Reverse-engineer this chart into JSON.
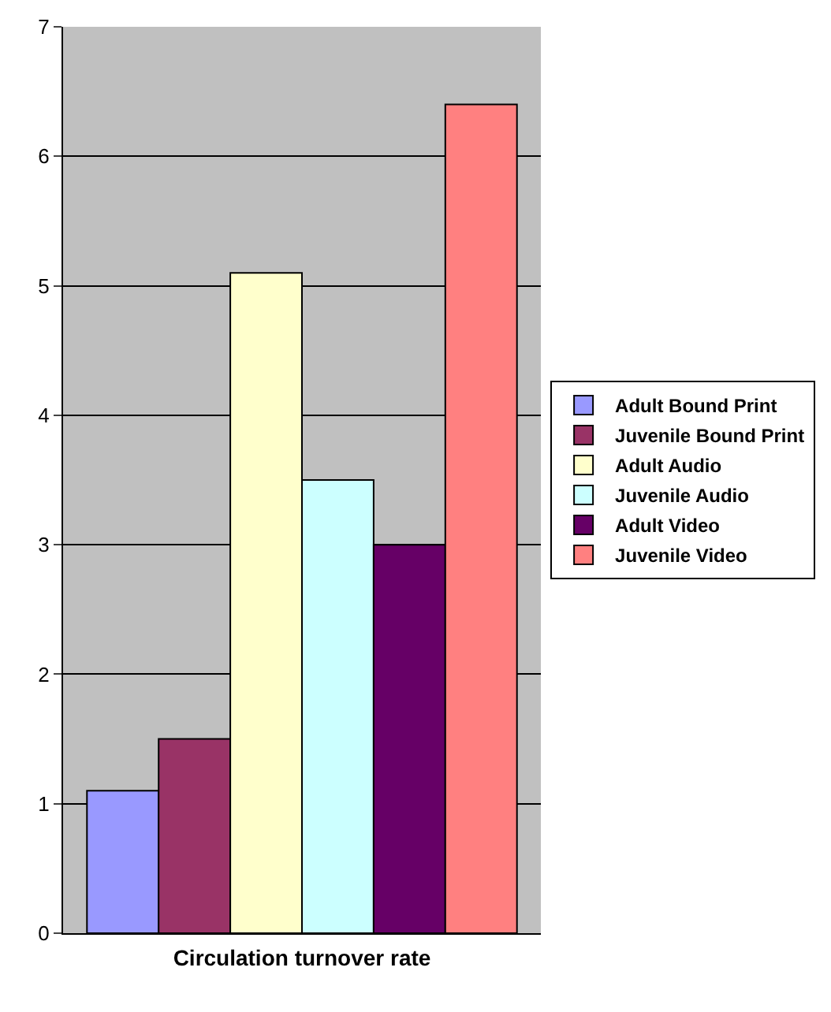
{
  "chart_data": {
    "type": "bar",
    "xlabel": "Circulation turnover rate",
    "categories": [
      null
    ],
    "series": [
      {
        "name": "Adult Bound Print",
        "color": "#9999ff",
        "values": [
          1.1
        ]
      },
      {
        "name": "Juvenile Bound Print",
        "color": "#993366",
        "values": [
          1.5
        ]
      },
      {
        "name": "Adult Audio",
        "color": "#ffffcc",
        "values": [
          5.1
        ]
      },
      {
        "name": "Juvenile Audio",
        "color": "#ccffff",
        "values": [
          3.5
        ]
      },
      {
        "name": "Adult Video",
        "color": "#660066",
        "values": [
          3.0
        ]
      },
      {
        "name": "Juvenile Video",
        "color": "#ff8080",
        "values": [
          6.4
        ]
      }
    ],
    "ylim": [
      0,
      7
    ],
    "yticks": [
      0,
      1,
      2,
      3,
      4,
      5,
      6,
      7
    ],
    "grid": "y",
    "legend": "right"
  }
}
